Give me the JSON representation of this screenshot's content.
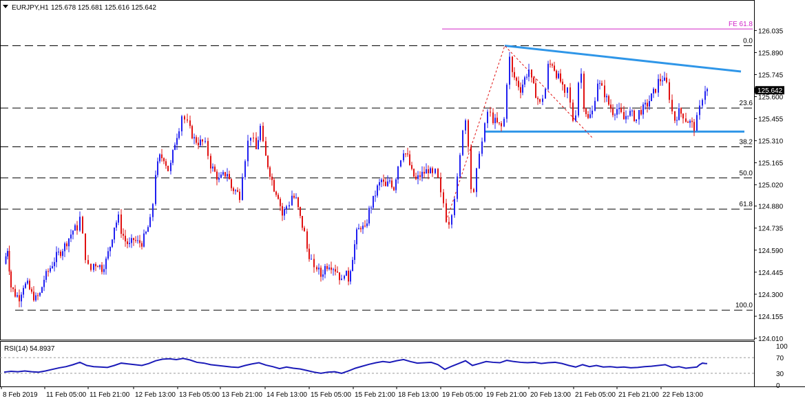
{
  "header": {
    "symbol_label": "EURJPY,H1",
    "ohlc_text": "125.678 125.681 125.616 125.642"
  },
  "rsi_panel": {
    "label": "RSI(14) 54.8937",
    "levels": [
      70,
      30
    ],
    "axis_ticks": [
      "100",
      "70",
      "30",
      "0"
    ]
  },
  "colors": {
    "bull": "#1f1ff0",
    "bear": "#e01010",
    "trendline": "#2f96e8",
    "fe_line": "#d020c8",
    "fib_dash": "#000000",
    "rsi_line": "#1a1ab8",
    "current_price_box": "#000000"
  },
  "chart_data": {
    "type": "candlestick",
    "symbol": "EURJPY",
    "timeframe": "H1",
    "current_price": 125.642,
    "y_range": [
      124.01,
      126.1
    ],
    "price_axis_ticks": [
      126.035,
      125.89,
      125.745,
      125.6,
      125.455,
      125.31,
      125.165,
      125.02,
      124.88,
      124.735,
      124.59,
      124.445,
      124.3,
      124.155,
      124.01
    ],
    "price_axis_labels": [
      "126.035",
      "125.890",
      "125.745",
      "125.600",
      "125.455",
      "125.310",
      "125.165",
      "125.020",
      "124.880",
      "124.735",
      "124.590",
      "124.445",
      "124.300",
      "124.155",
      "124.010"
    ],
    "current_price_label": "125.642",
    "x_tick_labels": [
      "8 Feb 2019",
      "11 Feb 05:00",
      "11 Feb 21:00",
      "12 Feb 13:00",
      "13 Feb 05:00",
      "13 Feb 21:00",
      "14 Feb 13:00",
      "15 Feb 05:00",
      "15 Feb 21:00",
      "18 Feb 13:00",
      "19 Feb 05:00",
      "19 Feb 21:00",
      "20 Feb 13:00",
      "21 Feb 05:00",
      "21 Feb 21:00",
      "22 Feb 13:00"
    ],
    "fib_levels": [
      {
        "label": "0.0",
        "price": 125.935
      },
      {
        "label": "23.6",
        "price": 125.525
      },
      {
        "label": "38.2",
        "price": 125.27
      },
      {
        "label": "50.0",
        "price": 125.065
      },
      {
        "label": "61.8",
        "price": 124.86
      },
      {
        "label": "100.0",
        "price": 124.195
      }
    ],
    "fe_level": {
      "label": "FE 61.8",
      "price": 126.045
    },
    "support_price": 125.37,
    "resistance_start_price": 125.935,
    "resistance_end_price": 125.765,
    "close_path": [
      [
        0,
        124.5
      ],
      [
        5,
        124.6
      ],
      [
        10,
        124.35
      ],
      [
        16,
        124.3
      ],
      [
        22,
        124.28
      ],
      [
        28,
        124.36
      ],
      [
        34,
        124.36
      ],
      [
        40,
        124.3
      ],
      [
        46,
        124.27
      ],
      [
        52,
        124.3
      ],
      [
        58,
        124.4
      ],
      [
        64,
        124.45
      ],
      [
        70,
        124.5
      ],
      [
        76,
        124.55
      ],
      [
        82,
        124.58
      ],
      [
        88,
        124.62
      ],
      [
        94,
        124.67
      ],
      [
        100,
        124.72
      ],
      [
        106,
        124.74
      ],
      [
        110,
        124.8
      ],
      [
        114,
        124.68
      ],
      [
        118,
        124.55
      ],
      [
        122,
        124.48
      ],
      [
        126,
        124.46
      ],
      [
        130,
        124.5
      ],
      [
        136,
        124.5
      ],
      [
        142,
        124.47
      ],
      [
        148,
        124.52
      ],
      [
        154,
        124.62
      ],
      [
        160,
        124.75
      ],
      [
        166,
        124.8
      ],
      [
        170,
        124.72
      ],
      [
        176,
        124.65
      ],
      [
        182,
        124.62
      ],
      [
        188,
        124.66
      ],
      [
        194,
        124.64
      ],
      [
        200,
        124.64
      ],
      [
        206,
        124.7
      ],
      [
        212,
        124.78
      ],
      [
        216,
        124.9
      ],
      [
        220,
        125.1
      ],
      [
        226,
        125.2
      ],
      [
        232,
        125.2
      ],
      [
        238,
        125.12
      ],
      [
        242,
        125.15
      ],
      [
        248,
        125.3
      ],
      [
        254,
        125.4
      ],
      [
        258,
        125.48
      ],
      [
        262,
        125.45
      ],
      [
        266,
        125.42
      ],
      [
        270,
        125.38
      ],
      [
        276,
        125.32
      ],
      [
        282,
        125.3
      ],
      [
        288,
        125.3
      ],
      [
        292,
        125.28
      ],
      [
        296,
        125.22
      ],
      [
        300,
        125.15
      ],
      [
        306,
        125.1
      ],
      [
        312,
        125.05
      ],
      [
        318,
        125.08
      ],
      [
        324,
        125.1
      ],
      [
        330,
        125.0
      ],
      [
        336,
        124.98
      ],
      [
        342,
        124.95
      ],
      [
        346,
        125.1
      ],
      [
        350,
        125.2
      ],
      [
        354,
        125.3
      ],
      [
        358,
        125.35
      ],
      [
        362,
        125.3
      ],
      [
        366,
        125.25
      ],
      [
        372,
        125.4
      ],
      [
        376,
        125.28
      ],
      [
        380,
        125.2
      ],
      [
        386,
        125.1
      ],
      [
        392,
        125.0
      ],
      [
        398,
        124.95
      ],
      [
        404,
        124.82
      ],
      [
        410,
        124.88
      ],
      [
        414,
        124.9
      ],
      [
        418,
        124.95
      ],
      [
        424,
        124.92
      ],
      [
        430,
        124.8
      ],
      [
        436,
        124.7
      ],
      [
        440,
        124.6
      ],
      [
        446,
        124.52
      ],
      [
        450,
        124.45
      ],
      [
        454,
        124.48
      ],
      [
        460,
        124.42
      ],
      [
        466,
        124.48
      ],
      [
        472,
        124.5
      ],
      [
        478,
        124.48
      ],
      [
        484,
        124.45
      ],
      [
        490,
        124.38
      ],
      [
        494,
        124.45
      ],
      [
        500,
        124.4
      ],
      [
        506,
        124.55
      ],
      [
        512,
        124.7
      ],
      [
        518,
        124.75
      ],
      [
        524,
        124.72
      ],
      [
        530,
        124.85
      ],
      [
        536,
        124.92
      ],
      [
        542,
        125.0
      ],
      [
        548,
        125.05
      ],
      [
        554,
        125.0
      ],
      [
        560,
        125.05
      ],
      [
        566,
        125.0
      ],
      [
        572,
        125.15
      ],
      [
        576,
        125.2
      ],
      [
        580,
        125.25
      ],
      [
        586,
        125.2
      ],
      [
        592,
        125.1
      ],
      [
        598,
        125.05
      ],
      [
        604,
        125.08
      ],
      [
        610,
        125.1
      ],
      [
        616,
        125.12
      ],
      [
        622,
        125.08
      ],
      [
        626,
        125.1
      ],
      [
        630,
        125.05
      ],
      [
        634,
        124.95
      ],
      [
        638,
        124.9
      ],
      [
        642,
        124.8
      ],
      [
        646,
        124.78
      ],
      [
        650,
        124.85
      ],
      [
        654,
        124.95
      ],
      [
        658,
        125.05
      ],
      [
        662,
        125.2
      ],
      [
        666,
        125.4
      ],
      [
        670,
        125.45
      ],
      [
        674,
        125.3
      ],
      [
        678,
        125.0
      ],
      [
        682,
        124.95
      ],
      [
        686,
        125.1
      ],
      [
        690,
        125.25
      ],
      [
        694,
        125.3
      ],
      [
        698,
        125.4
      ],
      [
        702,
        125.5
      ],
      [
        706,
        125.48
      ],
      [
        710,
        125.45
      ],
      [
        716,
        125.42
      ],
      [
        722,
        125.4
      ],
      [
        726,
        125.45
      ],
      [
        730,
        125.7
      ],
      [
        734,
        125.85
      ],
      [
        738,
        125.75
      ],
      [
        744,
        125.7
      ],
      [
        750,
        125.65
      ],
      [
        756,
        125.72
      ],
      [
        762,
        125.78
      ],
      [
        766,
        125.7
      ],
      [
        772,
        125.62
      ],
      [
        778,
        125.55
      ],
      [
        782,
        125.6
      ],
      [
        786,
        125.65
      ],
      [
        790,
        125.8
      ],
      [
        796,
        125.82
      ],
      [
        802,
        125.75
      ],
      [
        808,
        125.7
      ],
      [
        814,
        125.6
      ],
      [
        818,
        125.65
      ],
      [
        822,
        125.55
      ],
      [
        826,
        125.45
      ],
      [
        830,
        125.5
      ],
      [
        834,
        125.7
      ],
      [
        838,
        125.75
      ],
      [
        842,
        125.55
      ],
      [
        848,
        125.45
      ],
      [
        854,
        125.5
      ],
      [
        858,
        125.6
      ],
      [
        862,
        125.7
      ],
      [
        868,
        125.65
      ],
      [
        872,
        125.62
      ],
      [
        878,
        125.55
      ],
      [
        884,
        125.5
      ],
      [
        890,
        125.52
      ],
      [
        896,
        125.48
      ],
      [
        900,
        125.45
      ],
      [
        906,
        125.5
      ],
      [
        912,
        125.48
      ],
      [
        918,
        125.45
      ],
      [
        922,
        125.5
      ],
      [
        928,
        125.52
      ],
      [
        934,
        125.55
      ],
      [
        940,
        125.6
      ],
      [
        946,
        125.65
      ],
      [
        950,
        125.7
      ],
      [
        956,
        125.72
      ],
      [
        962,
        125.68
      ],
      [
        966,
        125.6
      ],
      [
        970,
        125.5
      ],
      [
        974,
        125.45
      ],
      [
        980,
        125.5
      ],
      [
        986,
        125.48
      ],
      [
        990,
        125.45
      ],
      [
        996,
        125.43
      ],
      [
        1002,
        125.4
      ],
      [
        1006,
        125.45
      ],
      [
        1010,
        125.52
      ],
      [
        1014,
        125.6
      ],
      [
        1018,
        125.65
      ],
      [
        1021,
        125.642
      ]
    ],
    "rsi_path": [
      [
        0,
        33
      ],
      [
        10,
        35
      ],
      [
        20,
        34
      ],
      [
        30,
        36
      ],
      [
        40,
        34
      ],
      [
        50,
        33
      ],
      [
        60,
        36
      ],
      [
        70,
        40
      ],
      [
        80,
        44
      ],
      [
        90,
        47
      ],
      [
        100,
        52
      ],
      [
        110,
        58
      ],
      [
        120,
        50
      ],
      [
        130,
        47
      ],
      [
        140,
        46
      ],
      [
        150,
        45
      ],
      [
        160,
        50
      ],
      [
        170,
        56
      ],
      [
        180,
        54
      ],
      [
        190,
        52
      ],
      [
        200,
        50
      ],
      [
        210,
        55
      ],
      [
        220,
        62
      ],
      [
        230,
        66
      ],
      [
        240,
        67
      ],
      [
        250,
        65
      ],
      [
        260,
        68
      ],
      [
        270,
        64
      ],
      [
        280,
        58
      ],
      [
        290,
        56
      ],
      [
        300,
        52
      ],
      [
        310,
        50
      ],
      [
        320,
        48
      ],
      [
        330,
        46
      ],
      [
        340,
        45
      ],
      [
        350,
        50
      ],
      [
        360,
        54
      ],
      [
        370,
        57
      ],
      [
        380,
        51
      ],
      [
        390,
        47
      ],
      [
        400,
        42
      ],
      [
        410,
        46
      ],
      [
        420,
        43
      ],
      [
        430,
        41
      ],
      [
        440,
        37
      ],
      [
        450,
        33
      ],
      [
        460,
        30
      ],
      [
        470,
        33
      ],
      [
        480,
        34
      ],
      [
        490,
        30
      ],
      [
        500,
        36
      ],
      [
        510,
        43
      ],
      [
        520,
        48
      ],
      [
        530,
        53
      ],
      [
        540,
        57
      ],
      [
        550,
        60
      ],
      [
        560,
        58
      ],
      [
        570,
        62
      ],
      [
        580,
        65
      ],
      [
        590,
        60
      ],
      [
        600,
        56
      ],
      [
        610,
        57
      ],
      [
        620,
        58
      ],
      [
        630,
        52
      ],
      [
        640,
        40
      ],
      [
        650,
        48
      ],
      [
        660,
        55
      ],
      [
        670,
        62
      ],
      [
        680,
        50
      ],
      [
        690,
        55
      ],
      [
        700,
        60
      ],
      [
        710,
        58
      ],
      [
        720,
        57
      ],
      [
        730,
        63
      ],
      [
        740,
        60
      ],
      [
        750,
        58
      ],
      [
        760,
        57
      ],
      [
        770,
        58
      ],
      [
        780,
        55
      ],
      [
        790,
        57
      ],
      [
        800,
        58
      ],
      [
        810,
        55
      ],
      [
        820,
        50
      ],
      [
        830,
        46
      ],
      [
        840,
        52
      ],
      [
        850,
        47
      ],
      [
        860,
        50
      ],
      [
        870,
        46
      ],
      [
        880,
        47
      ],
      [
        890,
        45
      ],
      [
        900,
        46
      ],
      [
        910,
        44
      ],
      [
        920,
        45
      ],
      [
        930,
        47
      ],
      [
        940,
        48
      ],
      [
        950,
        50
      ],
      [
        960,
        52
      ],
      [
        970,
        45
      ],
      [
        980,
        47
      ],
      [
        990,
        43
      ],
      [
        1000,
        45
      ],
      [
        1006,
        46
      ],
      [
        1010,
        52
      ],
      [
        1014,
        56
      ],
      [
        1018,
        55
      ],
      [
        1021,
        54.89
      ]
    ]
  }
}
